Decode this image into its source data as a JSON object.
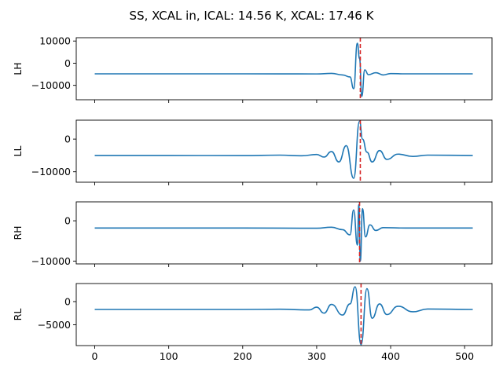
{
  "title": "SS, XCAL in, ICAL: 14.56 K, XCAL: 17.46 K",
  "chart_data": [
    {
      "type": "line",
      "ylabel": "LH",
      "xlim": [
        -25,
        537
      ],
      "ylim": [
        -16500,
        11500
      ],
      "yticks": [
        10000,
        0,
        -10000
      ],
      "ytick_labels": [
        "10000",
        "0",
        "−10000"
      ],
      "baseline": -4800,
      "series_color": "#1f77b4",
      "marker_x": 359,
      "marker_color": "#d62728",
      "x": [
        0,
        100,
        200,
        300,
        320,
        335,
        345,
        350,
        355,
        358,
        361,
        365,
        370,
        380,
        390,
        400,
        420,
        450,
        511
      ],
      "y": [
        -4800,
        -4800,
        -4800,
        -4850,
        -4600,
        -5300,
        -6200,
        -11500,
        9000,
        2000,
        -15000,
        -3000,
        -5200,
        -4300,
        -5300,
        -4700,
        -4800,
        -4800,
        -4800
      ]
    },
    {
      "type": "line",
      "ylabel": "LL",
      "xlim": [
        -25,
        537
      ],
      "ylim": [
        -13200,
        5800
      ],
      "yticks": [
        0,
        -10000
      ],
      "ytick_labels": [
        "0",
        "−10000"
      ],
      "baseline": -5000,
      "series_color": "#1f77b4",
      "marker_x": 359,
      "marker_color": "#d62728",
      "x": [
        0,
        100,
        200,
        250,
        280,
        300,
        310,
        320,
        330,
        340,
        350,
        358,
        362,
        368,
        375,
        385,
        395,
        410,
        430,
        450,
        511
      ],
      "y": [
        -5000,
        -5000,
        -5050,
        -4900,
        -5100,
        -4700,
        -5500,
        -3800,
        -7000,
        -2000,
        -12000,
        5500,
        0,
        -4000,
        -7000,
        -3500,
        -6200,
        -4600,
        -5300,
        -4900,
        -5000
      ]
    },
    {
      "type": "line",
      "ylabel": "RH",
      "xlim": [
        -25,
        537
      ],
      "ylim": [
        -10700,
        4700
      ],
      "yticks": [
        0,
        -10000
      ],
      "ytick_labels": [
        "0",
        "−10000"
      ],
      "baseline": -1800,
      "series_color": "#1f77b4",
      "marker_x": 358,
      "marker_color": "#d62728",
      "x": [
        0,
        100,
        200,
        300,
        320,
        335,
        345,
        350,
        355,
        357,
        359,
        362,
        366,
        372,
        380,
        390,
        420,
        511
      ],
      "y": [
        -1800,
        -1800,
        -1800,
        -1850,
        -1600,
        -2200,
        -3500,
        2700,
        -6000,
        4000,
        -10000,
        3000,
        -4000,
        -1000,
        -2400,
        -1700,
        -1800,
        -1800
      ]
    },
    {
      "type": "line",
      "ylabel": "RL",
      "xlim": [
        -25,
        537
      ],
      "ylim": [
        -9500,
        3900
      ],
      "yticks": [
        0,
        -5000
      ],
      "ytick_labels": [
        "0",
        "−5000"
      ],
      "baseline": -1700,
      "series_color": "#1f77b4",
      "marker_x": 360,
      "marker_color": "#d62728",
      "x": [
        0,
        100,
        200,
        250,
        290,
        300,
        310,
        320,
        335,
        345,
        352,
        360,
        368,
        375,
        385,
        395,
        410,
        430,
        450,
        511
      ],
      "y": [
        -1700,
        -1700,
        -1700,
        -1650,
        -1800,
        -1200,
        -2500,
        -600,
        -2900,
        -500,
        3200,
        -9300,
        2800,
        -3600,
        -500,
        -2800,
        -1000,
        -2200,
        -1600,
        -1700
      ]
    }
  ],
  "xticks": [
    0,
    100,
    200,
    300,
    400,
    500
  ],
  "xtick_labels": [
    "0",
    "100",
    "200",
    "300",
    "400",
    "500"
  ]
}
